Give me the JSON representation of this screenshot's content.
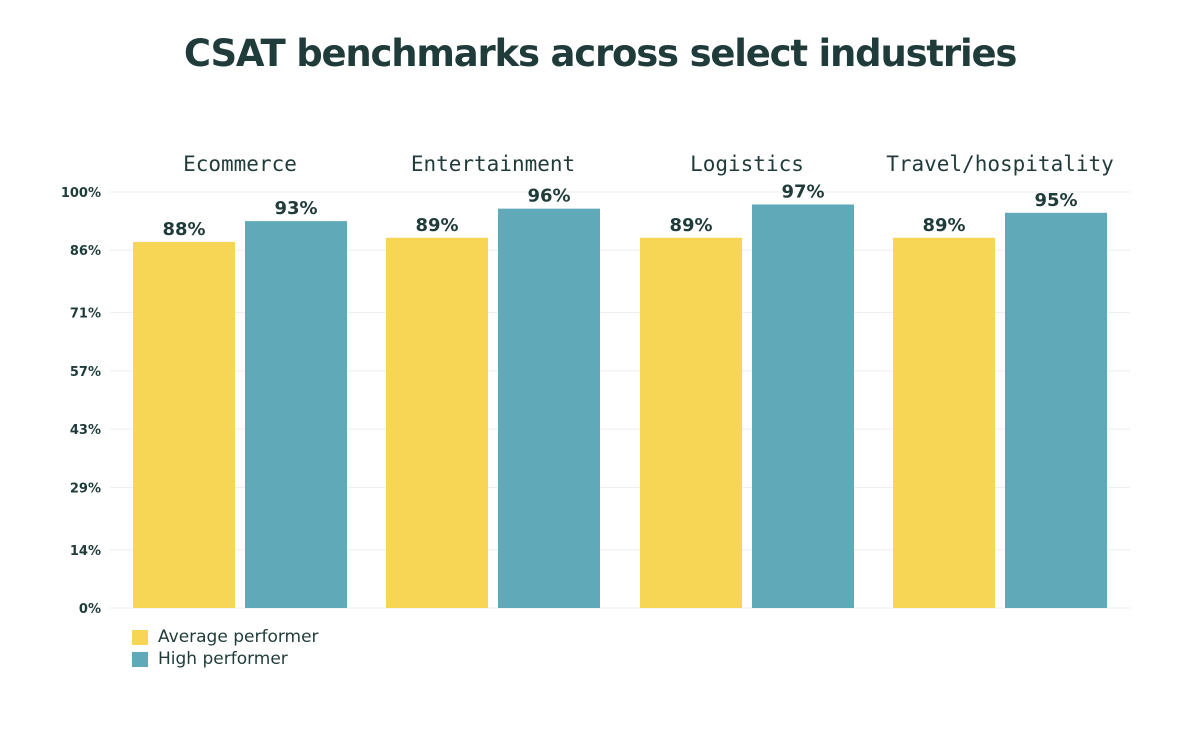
{
  "chart_data": {
    "type": "bar",
    "title": "CSAT benchmarks across select industries",
    "categories": [
      "Ecommerce",
      "Entertainment",
      "Logistics",
      "Travel/hospitality"
    ],
    "series": [
      {
        "name": "Average performer",
        "values": [
          88,
          89,
          89,
          89
        ],
        "labels": [
          "88%",
          "89%",
          "89%",
          "89%"
        ],
        "color": "#f7d655"
      },
      {
        "name": "High performer",
        "values": [
          93,
          96,
          97,
          95
        ],
        "labels": [
          "93%",
          "96%",
          "97%",
          "95%"
        ],
        "color": "#5fa9b9"
      }
    ],
    "ylim": [
      0,
      100
    ],
    "yticks": [
      0,
      14,
      29,
      43,
      57,
      71,
      86,
      100
    ],
    "ytick_labels": [
      "0%",
      "14%",
      "29%",
      "43%",
      "57%",
      "71%",
      "86%",
      "100%"
    ],
    "grid": true,
    "legend_position": "bottom-left",
    "xlabel": "",
    "ylabel": ""
  }
}
